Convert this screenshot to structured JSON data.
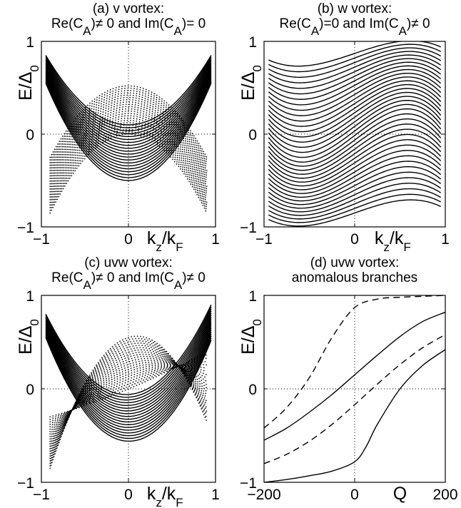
{
  "chart_data": [
    {
      "type": "line",
      "title_line1": "(a) v vortex:",
      "title_line2": "Re(C_A)≠ 0 and Im(C_A)= 0",
      "ylabel": "E/Δ_0",
      "xlabel": "k_z/k_F",
      "x_tick_labels": [
        "−1",
        "0",
        "1"
      ],
      "y_tick_labels": [
        "1",
        "0",
        "−1"
      ],
      "xlim": [
        -1,
        1
      ],
      "ylim": [
        -1,
        1
      ],
      "grid": "dotted zero lines",
      "series": [
        {
          "style": "solid",
          "count": 20,
          "shape": "parabola",
          "x_range": [
            -0.95,
            0.95
          ],
          "edge_value_range": [
            0.55,
            0.85
          ],
          "center_value_range": [
            -0.5,
            0.1
          ]
        },
        {
          "style": "dotted",
          "count": 22,
          "shape": "inverted parabola",
          "x_range": [
            -0.9,
            0.9
          ],
          "edge_value_range": [
            -0.85,
            -0.25
          ],
          "center_value_range": [
            0.0,
            0.52
          ]
        }
      ]
    },
    {
      "type": "line",
      "title_line1": "(b) w vortex:",
      "title_line2": "Re(C_A)=0 and Im(C_A)≠  0",
      "ylabel": "E/Δ_0",
      "xlabel": "k_z/k_F",
      "x_tick_labels": [
        "−1",
        "0",
        "1"
      ],
      "y_tick_labels": [
        "1",
        "0",
        "−1"
      ],
      "xlim": [
        -1,
        1
      ],
      "ylim": [
        -1,
        1
      ],
      "grid": "dotted zero lines",
      "series": [
        {
          "style": "solid",
          "count": 36,
          "shape": "cubic",
          "x_range": [
            -0.95,
            0.95
          ],
          "left_value_range": [
            -0.92,
            0.8
          ],
          "right_value_range": [
            -0.78,
            0.94
          ]
        }
      ]
    },
    {
      "type": "line",
      "title_line1": "(c) uvw vortex:",
      "title_line2": "Re(C_A)≠ 0 and Im(C_A)≠  0",
      "ylabel": "E/Δ_0",
      "xlabel": "k_z/k_F",
      "x_tick_labels": [
        "−1",
        "0",
        "1"
      ],
      "y_tick_labels": [
        "1",
        "0",
        "−1"
      ],
      "xlim": [
        -1,
        1
      ],
      "ylim": [
        -1,
        1
      ],
      "grid": "dotted zero lines",
      "series": [
        {
          "style": "solid",
          "count": 18,
          "shape": "tilted parabola",
          "x_range": [
            -0.95,
            0.95
          ]
        },
        {
          "style": "dotted",
          "count": 22,
          "shape": "tilted inverted parabola",
          "x_range": [
            -0.9,
            0.9
          ]
        }
      ]
    },
    {
      "type": "line",
      "title_line1": "(d) uvw vortex:",
      "title_line2": "anomalous branches",
      "ylabel": "E/Δ_0",
      "xlabel": "Q",
      "x_tick_labels": [
        "−200",
        "0",
        "200"
      ],
      "y_tick_labels": [
        "1",
        "0",
        "−1"
      ],
      "xlim": [
        -200,
        200
      ],
      "ylim": [
        -1,
        1
      ],
      "grid": "dotted zero lines",
      "series": [
        {
          "style": "dashed",
          "x": [
            -200,
            -150,
            -100,
            -50,
            0,
            50,
            100,
            150,
            200
          ],
          "y": [
            -0.42,
            -0.2,
            0.12,
            0.55,
            0.87,
            0.96,
            0.98,
            0.99,
            1.0
          ]
        },
        {
          "style": "solid",
          "x": [
            -200,
            -150,
            -100,
            -50,
            0,
            50,
            100,
            150,
            200
          ],
          "y": [
            -0.55,
            -0.42,
            -0.25,
            -0.06,
            0.15,
            0.36,
            0.56,
            0.72,
            0.82
          ]
        },
        {
          "style": "dashed",
          "x": [
            -200,
            -150,
            -100,
            -50,
            0,
            50,
            100,
            150,
            200
          ],
          "y": [
            -0.8,
            -0.7,
            -0.56,
            -0.38,
            -0.17,
            0.05,
            0.26,
            0.44,
            0.58
          ]
        },
        {
          "style": "solid",
          "x": [
            -200,
            -150,
            -100,
            -50,
            0,
            25,
            50,
            100,
            150,
            200
          ],
          "y": [
            -1.0,
            -0.97,
            -0.93,
            -0.88,
            -0.78,
            -0.62,
            -0.38,
            0.0,
            0.25,
            0.42
          ]
        }
      ]
    }
  ]
}
